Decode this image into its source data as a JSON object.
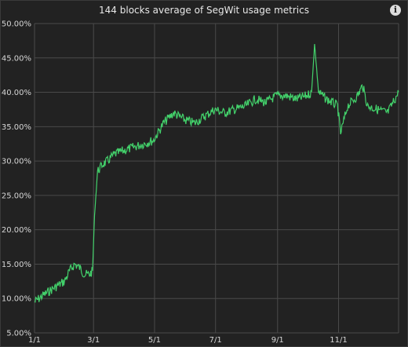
{
  "header": {
    "title": "144 blocks average of SegWit usage metrics",
    "info_icon": "info-icon",
    "info_glyph": "i"
  },
  "chart_data": {
    "type": "line",
    "title": "144 blocks average of SegWit usage metrics",
    "xlabel": "",
    "ylabel": "",
    "xlim": [
      "1/1",
      "12/31"
    ],
    "ylim": [
      5,
      50
    ],
    "grid": true,
    "x_ticks": [
      "1/1",
      "3/1",
      "5/1",
      "7/1",
      "9/1",
      "11/1"
    ],
    "y_ticks": [
      "5.00%",
      "10.00%",
      "15.00%",
      "20.00%",
      "25.00%",
      "30.00%",
      "35.00%",
      "40.00%",
      "45.00%",
      "50.00%"
    ],
    "series": [
      {
        "color": "#43d16b",
        "points": [
          [
            "1/1",
            9.5
          ],
          [
            "1/10",
            10.5
          ],
          [
            "1/20",
            11.5
          ],
          [
            "1/31",
            12.5
          ],
          [
            "2/5",
            14.0
          ],
          [
            "2/10",
            15.0
          ],
          [
            "2/15",
            14.5
          ],
          [
            "2/20",
            13.5
          ],
          [
            "2/25",
            13.5
          ],
          [
            "2/28",
            14.0
          ],
          [
            "3/2",
            22.0
          ],
          [
            "3/5",
            28.5
          ],
          [
            "3/10",
            29.5
          ],
          [
            "3/15",
            30.0
          ],
          [
            "3/22",
            31.0
          ],
          [
            "3/31",
            31.5
          ],
          [
            "4/10",
            32.0
          ],
          [
            "4/20",
            32.5
          ],
          [
            "4/30",
            33.0
          ],
          [
            "5/10",
            35.5
          ],
          [
            "5/20",
            37.0
          ],
          [
            "5/31",
            36.0
          ],
          [
            "6/10",
            35.5
          ],
          [
            "6/20",
            36.5
          ],
          [
            "6/30",
            37.5
          ],
          [
            "7/10",
            37.0
          ],
          [
            "7/20",
            37.5
          ],
          [
            "7/31",
            38.0
          ],
          [
            "8/10",
            39.0
          ],
          [
            "8/20",
            38.5
          ],
          [
            "8/31",
            39.5
          ],
          [
            "9/10",
            39.5
          ],
          [
            "9/20",
            39.0
          ],
          [
            "9/30",
            39.5
          ],
          [
            "10/5",
            40.0
          ],
          [
            "10/8",
            47.0
          ],
          [
            "10/12",
            40.0
          ],
          [
            "10/20",
            39.0
          ],
          [
            "10/31",
            38.0
          ],
          [
            "11/3",
            34.0
          ],
          [
            "11/10",
            38.0
          ],
          [
            "11/20",
            39.5
          ],
          [
            "11/25",
            41.0
          ],
          [
            "11/30",
            38.0
          ],
          [
            "12/10",
            37.5
          ],
          [
            "12/20",
            37.0
          ],
          [
            "12/31",
            40.0
          ]
        ]
      }
    ]
  }
}
